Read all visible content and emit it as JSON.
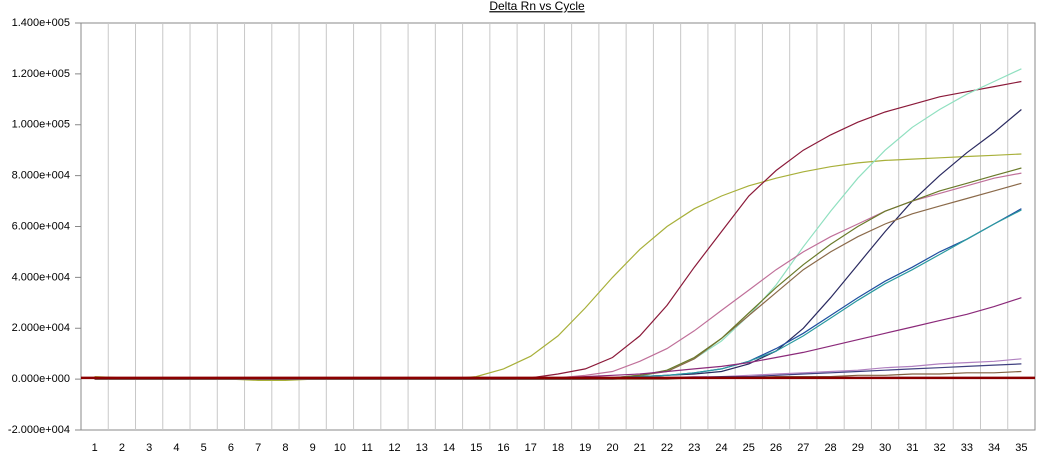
{
  "chart_data": {
    "type": "line",
    "title": "Delta Rn vs Cycle",
    "x": [
      1,
      2,
      3,
      4,
      5,
      6,
      7,
      8,
      9,
      10,
      11,
      12,
      13,
      14,
      15,
      16,
      17,
      18,
      19,
      20,
      21,
      22,
      23,
      24,
      25,
      26,
      27,
      28,
      29,
      30,
      31,
      32,
      33,
      34,
      35
    ],
    "xlim": [
      0.5,
      35.5
    ],
    "xticks": [
      1,
      2,
      3,
      4,
      5,
      6,
      7,
      8,
      9,
      10,
      11,
      12,
      13,
      14,
      15,
      16,
      17,
      18,
      19,
      20,
      21,
      22,
      23,
      24,
      25,
      26,
      27,
      28,
      29,
      30,
      31,
      32,
      33,
      34,
      35
    ],
    "ylim": [
      -20000,
      140000
    ],
    "yticks": [
      {
        "value": 140000,
        "label": "1.400e+005"
      },
      {
        "value": 120000,
        "label": "1.200e+005"
      },
      {
        "value": 100000,
        "label": "1.000e+005"
      },
      {
        "value": 80000,
        "label": "8.000e+004"
      },
      {
        "value": 60000,
        "label": "6.000e+004"
      },
      {
        "value": 40000,
        "label": "4.000e+004"
      },
      {
        "value": 20000,
        "label": "2.000e+004"
      },
      {
        "value": 0,
        "label": "0.000e+000"
      },
      {
        "value": -20000,
        "label": "-2.000e+004"
      }
    ],
    "vertical_grid": true,
    "threshold": {
      "value": 500,
      "color": "#8b0000"
    },
    "series": [
      {
        "color": "#a8b03a",
        "values": [
          1000,
          500,
          0,
          0,
          0,
          0,
          -500,
          -500,
          0,
          0,
          0,
          0,
          0,
          0,
          1000,
          4000,
          9000,
          17000,
          28000,
          40000,
          51000,
          60000,
          67000,
          72000,
          76000,
          79000,
          81500,
          83500,
          85000,
          86000,
          86500,
          87000,
          87500,
          88000,
          88500
        ]
      },
      {
        "color": "#8b1a3a",
        "values": [
          0,
          0,
          0,
          0,
          0,
          0,
          0,
          0,
          0,
          0,
          0,
          0,
          0,
          0,
          0,
          0,
          500,
          2000,
          4000,
          8500,
          17000,
          29000,
          44000,
          58000,
          72000,
          82000,
          90000,
          96000,
          101000,
          105000,
          108000,
          111000,
          113000,
          115000,
          117000
        ]
      },
      {
        "color": "#90e0c0",
        "values": [
          0,
          0,
          0,
          0,
          0,
          0,
          0,
          0,
          0,
          0,
          0,
          0,
          0,
          0,
          0,
          0,
          0,
          0,
          0,
          500,
          1000,
          3500,
          8000,
          15000,
          25000,
          37000,
          52000,
          66000,
          79000,
          90000,
          99000,
          106000,
          112000,
          117000,
          122000
        ]
      },
      {
        "color": "#2a2a60",
        "values": [
          0,
          0,
          0,
          0,
          0,
          0,
          0,
          0,
          0,
          0,
          0,
          0,
          0,
          0,
          0,
          0,
          0,
          0,
          0,
          500,
          1000,
          1500,
          2000,
          3000,
          6000,
          11000,
          20000,
          32000,
          45000,
          58000,
          70000,
          80000,
          89000,
          97000,
          106000
        ]
      },
      {
        "color": "#c0709a",
        "values": [
          0,
          0,
          0,
          0,
          0,
          0,
          0,
          0,
          0,
          0,
          0,
          0,
          0,
          0,
          0,
          0,
          0,
          500,
          1500,
          3000,
          7000,
          12000,
          19000,
          27000,
          35000,
          43000,
          50000,
          56000,
          61000,
          66000,
          70000,
          73000,
          76000,
          79000,
          81000
        ]
      },
      {
        "color": "#8b6a4a",
        "values": [
          0,
          0,
          0,
          0,
          0,
          0,
          0,
          0,
          0,
          0,
          0,
          0,
          0,
          0,
          0,
          0,
          0,
          0,
          0,
          500,
          1500,
          3000,
          8000,
          16000,
          25000,
          34000,
          43000,
          50000,
          56000,
          61000,
          65000,
          68000,
          71000,
          74000,
          77000
        ]
      },
      {
        "color": "#6a7a2a",
        "values": [
          0,
          0,
          0,
          0,
          0,
          0,
          0,
          0,
          0,
          0,
          0,
          0,
          0,
          0,
          0,
          0,
          0,
          0,
          0,
          500,
          1500,
          3500,
          8500,
          16000,
          26000,
          36000,
          45000,
          53000,
          60000,
          66000,
          70000,
          74000,
          77000,
          80000,
          83000
        ]
      },
      {
        "color": "#1f4fa0",
        "values": [
          0,
          0,
          0,
          0,
          0,
          0,
          0,
          0,
          0,
          0,
          0,
          0,
          0,
          0,
          0,
          0,
          0,
          0,
          0,
          500,
          1000,
          1500,
          2500,
          4000,
          7000,
          12000,
          18000,
          25000,
          32000,
          38500,
          44000,
          50000,
          55000,
          61000,
          67000
        ]
      },
      {
        "color": "#2a9aa0",
        "values": [
          0,
          0,
          0,
          0,
          0,
          0,
          0,
          0,
          0,
          0,
          0,
          0,
          0,
          0,
          0,
          0,
          0,
          0,
          0,
          500,
          1000,
          1500,
          2500,
          4000,
          7000,
          11000,
          17000,
          24000,
          31000,
          37500,
          43000,
          49000,
          55000,
          61000,
          66500
        ]
      },
      {
        "color": "#8b2a7a",
        "values": [
          0,
          0,
          0,
          0,
          0,
          0,
          0,
          0,
          0,
          0,
          0,
          0,
          0,
          0,
          0,
          0,
          0,
          500,
          1000,
          1500,
          2000,
          3000,
          4000,
          5000,
          6500,
          8500,
          10500,
          13000,
          15500,
          18000,
          20500,
          23000,
          25500,
          28500,
          32000
        ]
      },
      {
        "color": "#b080c0",
        "values": [
          0,
          0,
          0,
          0,
          0,
          0,
          0,
          0,
          0,
          0,
          0,
          0,
          0,
          0,
          0,
          0,
          0,
          0,
          0,
          0,
          500,
          500,
          1000,
          1000,
          1500,
          2000,
          2500,
          3000,
          3500,
          4500,
          5000,
          6000,
          6500,
          7000,
          8000
        ]
      },
      {
        "color": "#404080",
        "values": [
          0,
          0,
          0,
          0,
          0,
          0,
          0,
          0,
          0,
          0,
          0,
          0,
          0,
          0,
          0,
          0,
          0,
          0,
          0,
          0,
          500,
          500,
          500,
          1000,
          1000,
          1500,
          2000,
          2500,
          3000,
          3500,
          4000,
          4500,
          5000,
          5500,
          6000
        ]
      },
      {
        "color": "#806040",
        "values": [
          0,
          0,
          0,
          0,
          0,
          0,
          0,
          0,
          0,
          0,
          0,
          0,
          0,
          0,
          0,
          0,
          0,
          0,
          0,
          0,
          0,
          0,
          500,
          500,
          500,
          1000,
          1000,
          1000,
          1500,
          1500,
          2000,
          2000,
          2500,
          2500,
          3000
        ]
      }
    ]
  }
}
